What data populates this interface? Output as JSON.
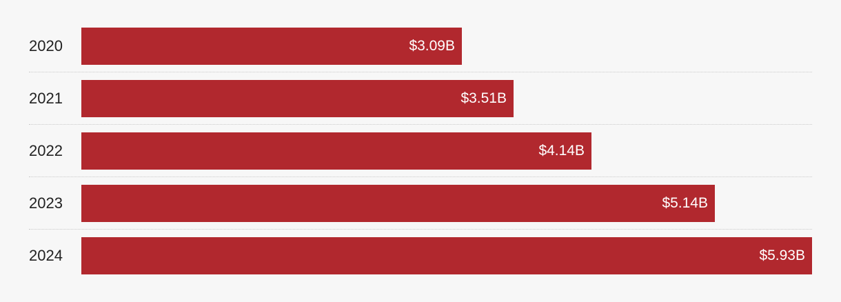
{
  "chart_data": {
    "type": "bar",
    "orientation": "horizontal",
    "categories": [
      "2020",
      "2021",
      "2022",
      "2023",
      "2024"
    ],
    "values": [
      3.09,
      3.51,
      4.14,
      5.14,
      5.93
    ],
    "value_labels": [
      "$3.09B",
      "$3.51B",
      "$4.14B",
      "$5.14B",
      "$5.93B"
    ],
    "unit": "$B",
    "xlim": [
      0,
      5.93
    ],
    "grid": false,
    "bar_color": "#b1282e"
  }
}
